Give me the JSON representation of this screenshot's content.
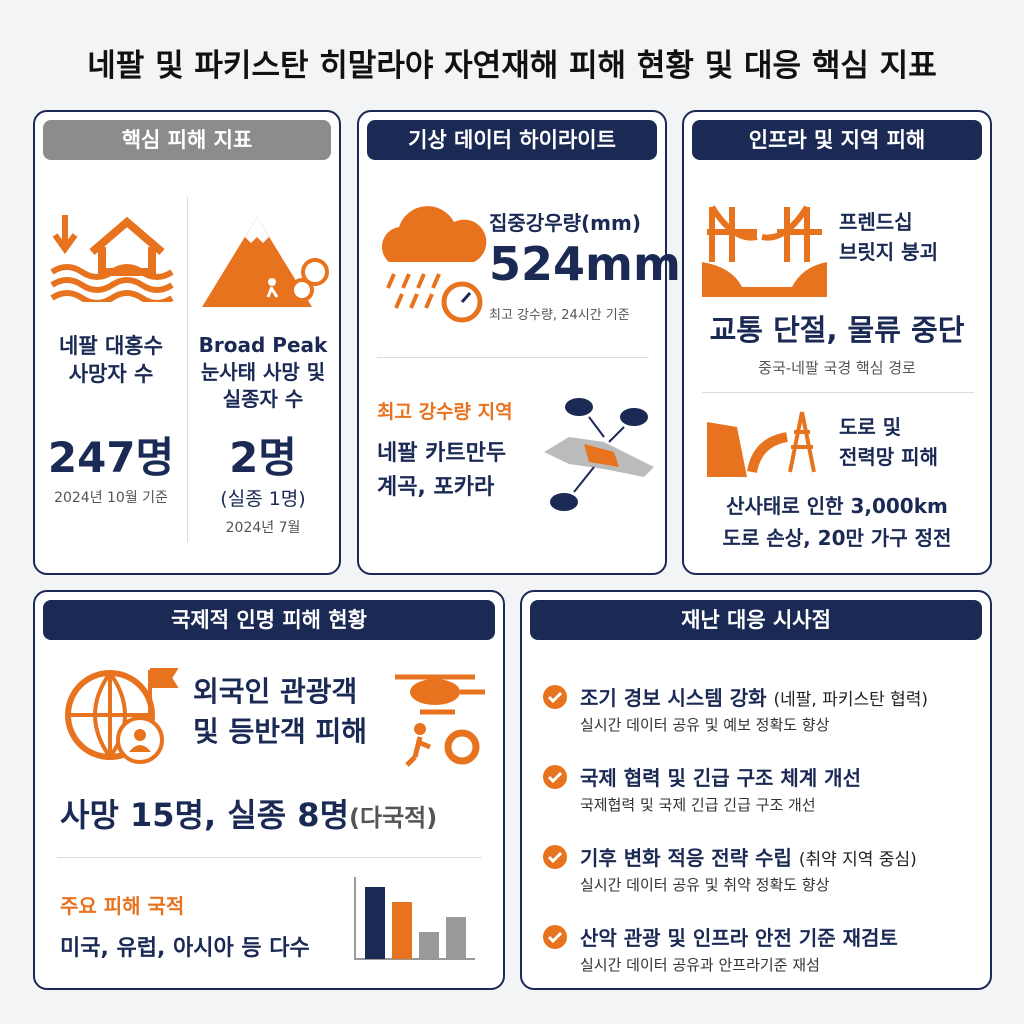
{
  "title": "네팔 및 파키스탄 히말라야 자연재해 피해 현황 및 대응 핵심 지표",
  "damage": {
    "header": "핵심 피해 지표",
    "items": [
      {
        "label": [
          "네팔 대홍수",
          "사망자 수"
        ],
        "value": "247명",
        "note": "2024년 10월 기준"
      },
      {
        "label": [
          "Broad Peak",
          "눈사태 사망 및",
          "실종자 수"
        ],
        "value": "2명",
        "sub": "(실종 1명)",
        "note": "2024년 7월"
      }
    ]
  },
  "weather": {
    "header": "기상 데이터 하이라이트",
    "metric_label": "집중강우량(mm)",
    "metric_value": "524mm",
    "metric_note": "최고 강수량, 24시간 기준",
    "region_title": "최고 강수량 지역",
    "region": [
      "네팔 카트만두",
      "계곡, 포카라"
    ]
  },
  "infra": {
    "header": "인프라 및 지역 피해",
    "item1": [
      "프렌드십",
      "브릿지 붕괴"
    ],
    "headline": "교통 단절, 물류 중단",
    "headline_note": "중국-네팔 국경 핵심 경로",
    "item2": [
      "도로 및",
      "전력망 피해"
    ],
    "detail": [
      "산사태로 인한 3,000km",
      "도로 손상, 20만 가구 정전"
    ]
  },
  "international": {
    "header": "국제적 인명 피해 현황",
    "heading": [
      "외국인 관광객",
      "및 등반객 피해"
    ],
    "stats": "사망 15명, 실종 8명",
    "stats_note": "(다국적)",
    "nationality_title": "주요 피해 국적",
    "nationality": "미국, 유럽, 아시아 등 다수"
  },
  "response": {
    "header": "재난 대응 시사점",
    "items": [
      {
        "title": "조기 경보 시스템 강화",
        "note": "(네팔, 파키스탄 협력)",
        "desc": "실시간 데이터 공유 및 예보 정확도 향상"
      },
      {
        "title": "국제 협력 및 긴급 구조 체계 개선",
        "desc": "국제협력 및 국제 긴급 긴급 구조 개선"
      },
      {
        "title": "기후 변화 적응 전략 수립",
        "note": "(취약 지역 중심)",
        "desc": "실시간 데이터 공유 및 취약 정확도 향상"
      },
      {
        "title": "산악 관광 및 인프라 안전 기준 재검토",
        "desc": "실시간 데이터 공유과 안프라기준 재섬"
      }
    ]
  }
}
